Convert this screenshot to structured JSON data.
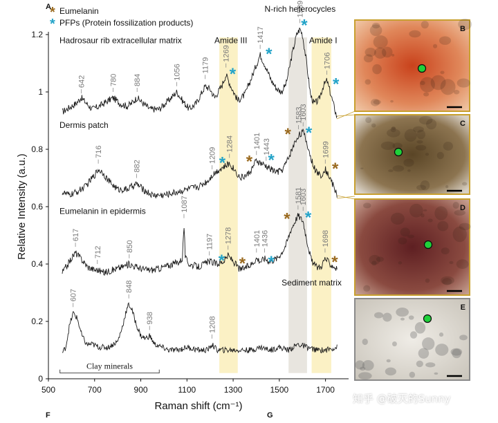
{
  "panel_labels": {
    "a": "A",
    "f": "F",
    "g": "G"
  },
  "legend": [
    {
      "symbol": "*",
      "color": "#9a6a1f",
      "label": "Eumelanin"
    },
    {
      "symbol": "*",
      "color": "#23a3c8",
      "label": "PFPs (Protein fossilization products)"
    }
  ],
  "chart_data": {
    "type": "line",
    "xlabel": "Raman shift (cm⁻¹)",
    "ylabel": "Relative Intensity (a.u.)",
    "xlim": [
      500,
      1800
    ],
    "ylim": [
      0,
      1.2
    ],
    "xticks": [
      500,
      700,
      900,
      1100,
      1300,
      1500,
      1700
    ],
    "yticks": [
      0,
      0.2,
      0.4,
      0.6,
      0.8,
      1.0,
      1.2
    ],
    "ytick_labels": [
      "0",
      "0.2",
      "0.4",
      "0.6",
      "0.8",
      "1",
      "1.2"
    ],
    "grid": false,
    "bands": [
      {
        "name": "Amide III",
        "range": [
          1240,
          1320
        ],
        "color": "#fbefbf"
      },
      {
        "name": "N-rich heterocycles",
        "range": [
          1540,
          1620
        ],
        "color": "#e6e2dc"
      },
      {
        "name": "Amide I",
        "range": [
          1640,
          1725
        ],
        "color": "#fbefbf"
      }
    ],
    "series": [
      {
        "name": "Hadrosaur rib extracellular matrix",
        "label_at": [
          548,
          1.17
        ],
        "noise": 0.012,
        "points": [
          [
            560,
            0.93
          ],
          [
            580,
            0.94
          ],
          [
            600,
            0.95
          ],
          [
            620,
            0.96
          ],
          [
            642,
            0.98
          ],
          [
            665,
            0.96
          ],
          [
            690,
            0.94
          ],
          [
            720,
            0.95
          ],
          [
            760,
            0.97
          ],
          [
            780,
            0.98
          ],
          [
            810,
            0.96
          ],
          [
            840,
            0.95
          ],
          [
            860,
            0.96
          ],
          [
            884,
            0.98
          ],
          [
            910,
            0.96
          ],
          [
            940,
            0.94
          ],
          [
            980,
            0.94
          ],
          [
            1020,
            0.97
          ],
          [
            1056,
            1.0
          ],
          [
            1080,
            0.97
          ],
          [
            1110,
            0.94
          ],
          [
            1140,
            0.96
          ],
          [
            1179,
            1.02
          ],
          [
            1200,
            1.01
          ],
          [
            1220,
            0.98
          ],
          [
            1250,
            1.02
          ],
          [
            1269,
            1.06
          ],
          [
            1290,
            1.02
          ],
          [
            1320,
            0.97
          ],
          [
            1350,
            0.99
          ],
          [
            1380,
            1.05
          ],
          [
            1417,
            1.13
          ],
          [
            1440,
            1.09
          ],
          [
            1465,
            1.04
          ],
          [
            1490,
            1.01
          ],
          [
            1510,
            1.0
          ],
          [
            1530,
            1.03
          ],
          [
            1555,
            1.13
          ],
          [
            1575,
            1.2
          ],
          [
            1589,
            1.22
          ],
          [
            1600,
            1.2
          ],
          [
            1615,
            1.12
          ],
          [
            1635,
            0.99
          ],
          [
            1650,
            0.96
          ],
          [
            1670,
            0.97
          ],
          [
            1690,
            1.02
          ],
          [
            1706,
            1.04
          ],
          [
            1720,
            1.0
          ],
          [
            1740,
            0.94
          ],
          [
            1750,
            0.91
          ]
        ]
      },
      {
        "name": "Dermis patch",
        "label_at": [
          548,
          0.875
        ],
        "noise": 0.012,
        "points": [
          [
            560,
            0.65
          ],
          [
            590,
            0.64
          ],
          [
            620,
            0.65
          ],
          [
            660,
            0.67
          ],
          [
            700,
            0.71
          ],
          [
            716,
            0.73
          ],
          [
            735,
            0.72
          ],
          [
            760,
            0.69
          ],
          [
            800,
            0.66
          ],
          [
            840,
            0.66
          ],
          [
            882,
            0.68
          ],
          [
            910,
            0.66
          ],
          [
            950,
            0.64
          ],
          [
            1000,
            0.64
          ],
          [
            1050,
            0.65
          ],
          [
            1100,
            0.66
          ],
          [
            1150,
            0.67
          ],
          [
            1190,
            0.69
          ],
          [
            1209,
            0.71
          ],
          [
            1240,
            0.73
          ],
          [
            1265,
            0.74
          ],
          [
            1284,
            0.75
          ],
          [
            1305,
            0.73
          ],
          [
            1330,
            0.7
          ],
          [
            1360,
            0.71
          ],
          [
            1380,
            0.73
          ],
          [
            1401,
            0.76
          ],
          [
            1420,
            0.75
          ],
          [
            1443,
            0.74
          ],
          [
            1465,
            0.73
          ],
          [
            1490,
            0.72
          ],
          [
            1515,
            0.73
          ],
          [
            1540,
            0.77
          ],
          [
            1560,
            0.81
          ],
          [
            1583,
            0.85
          ],
          [
            1603,
            0.86
          ],
          [
            1620,
            0.82
          ],
          [
            1640,
            0.76
          ],
          [
            1660,
            0.72
          ],
          [
            1680,
            0.71
          ],
          [
            1699,
            0.73
          ],
          [
            1720,
            0.7
          ],
          [
            1740,
            0.66
          ],
          [
            1750,
            0.64
          ]
        ]
      },
      {
        "name": "Eumelanin in epidermis",
        "label_at": [
          548,
          0.575
        ],
        "noise": 0.012,
        "points": [
          [
            560,
            0.37
          ],
          [
            585,
            0.4
          ],
          [
            600,
            0.42
          ],
          [
            617,
            0.44
          ],
          [
            640,
            0.42
          ],
          [
            670,
            0.39
          ],
          [
            700,
            0.38
          ],
          [
            712,
            0.38
          ],
          [
            740,
            0.37
          ],
          [
            780,
            0.38
          ],
          [
            820,
            0.39
          ],
          [
            850,
            0.4
          ],
          [
            880,
            0.39
          ],
          [
            920,
            0.38
          ],
          [
            960,
            0.38
          ],
          [
            1000,
            0.39
          ],
          [
            1040,
            0.4
          ],
          [
            1070,
            0.41
          ],
          [
            1080,
            0.42
          ],
          [
            1087,
            0.54
          ],
          [
            1093,
            0.42
          ],
          [
            1110,
            0.4
          ],
          [
            1150,
            0.39
          ],
          [
            1197,
            0.41
          ],
          [
            1230,
            0.4
          ],
          [
            1260,
            0.41
          ],
          [
            1278,
            0.43
          ],
          [
            1300,
            0.41
          ],
          [
            1330,
            0.38
          ],
          [
            1360,
            0.39
          ],
          [
            1380,
            0.4
          ],
          [
            1401,
            0.42
          ],
          [
            1420,
            0.41
          ],
          [
            1436,
            0.42
          ],
          [
            1460,
            0.41
          ],
          [
            1490,
            0.42
          ],
          [
            1510,
            0.44
          ],
          [
            1530,
            0.47
          ],
          [
            1550,
            0.52
          ],
          [
            1568,
            0.55
          ],
          [
            1581,
            0.57
          ],
          [
            1603,
            0.55
          ],
          [
            1620,
            0.48
          ],
          [
            1640,
            0.41
          ],
          [
            1660,
            0.39
          ],
          [
            1680,
            0.39
          ],
          [
            1698,
            0.42
          ],
          [
            1720,
            0.4
          ],
          [
            1740,
            0.39
          ],
          [
            1750,
            0.38
          ]
        ]
      },
      {
        "name": "Sediment matrix",
        "label_at": [
          1510,
          0.325
        ],
        "noise": 0.01,
        "points": [
          [
            560,
            0.09
          ],
          [
            575,
            0.11
          ],
          [
            590,
            0.18
          ],
          [
            607,
            0.23
          ],
          [
            625,
            0.21
          ],
          [
            645,
            0.15
          ],
          [
            665,
            0.12
          ],
          [
            690,
            0.12
          ],
          [
            720,
            0.11
          ],
          [
            760,
            0.11
          ],
          [
            800,
            0.13
          ],
          [
            820,
            0.18
          ],
          [
            835,
            0.23
          ],
          [
            848,
            0.26
          ],
          [
            862,
            0.24
          ],
          [
            880,
            0.19
          ],
          [
            900,
            0.15
          ],
          [
            920,
            0.14
          ],
          [
            938,
            0.15
          ],
          [
            960,
            0.12
          ],
          [
            990,
            0.11
          ],
          [
            1020,
            0.1
          ],
          [
            1060,
            0.1
          ],
          [
            1100,
            0.11
          ],
          [
            1150,
            0.1
          ],
          [
            1190,
            0.1
          ],
          [
            1208,
            0.12
          ],
          [
            1230,
            0.1
          ],
          [
            1280,
            0.1
          ],
          [
            1330,
            0.1
          ],
          [
            1380,
            0.1
          ],
          [
            1420,
            0.11
          ],
          [
            1460,
            0.1
          ],
          [
            1500,
            0.11
          ],
          [
            1540,
            0.1
          ],
          [
            1580,
            0.12
          ],
          [
            1620,
            0.11
          ],
          [
            1660,
            0.1
          ],
          [
            1700,
            0.1
          ],
          [
            1750,
            0.11
          ]
        ]
      }
    ],
    "peak_labels": [
      {
        "x": 642,
        "y": 0.995,
        "text": "642"
      },
      {
        "x": 780,
        "y": 1.0,
        "text": "780"
      },
      {
        "x": 884,
        "y": 1.0,
        "text": "884"
      },
      {
        "x": 1056,
        "y": 1.02,
        "text": "1056"
      },
      {
        "x": 1179,
        "y": 1.045,
        "text": "1179"
      },
      {
        "x": 1269,
        "y": 1.085,
        "text": "1269"
      },
      {
        "x": 1417,
        "y": 1.15,
        "text": "1417"
      },
      {
        "x": 1589,
        "y": 1.24,
        "text": "1589"
      },
      {
        "x": 1706,
        "y": 1.06,
        "text": "1706"
      },
      {
        "x": 716,
        "y": 0.75,
        "text": "716"
      },
      {
        "x": 882,
        "y": 0.7,
        "text": "882"
      },
      {
        "x": 1209,
        "y": 0.73,
        "text": "1209"
      },
      {
        "x": 1284,
        "y": 0.77,
        "text": "1284"
      },
      {
        "x": 1401,
        "y": 0.78,
        "text": "1401"
      },
      {
        "x": 1443,
        "y": 0.76,
        "text": "1443"
      },
      {
        "x": 1583,
        "y": 0.87,
        "text": "1583"
      },
      {
        "x": 1603,
        "y": 0.88,
        "text": "1603"
      },
      {
        "x": 1699,
        "y": 0.75,
        "text": "1699"
      },
      {
        "x": 617,
        "y": 0.46,
        "text": "617"
      },
      {
        "x": 712,
        "y": 0.4,
        "text": "712"
      },
      {
        "x": 850,
        "y": 0.42,
        "text": "850"
      },
      {
        "x": 1087,
        "y": 0.56,
        "text": "1087"
      },
      {
        "x": 1197,
        "y": 0.43,
        "text": "1197"
      },
      {
        "x": 1278,
        "y": 0.45,
        "text": "1278"
      },
      {
        "x": 1401,
        "y": 0.44,
        "text": "1401"
      },
      {
        "x": 1436,
        "y": 0.44,
        "text": "1436"
      },
      {
        "x": 1581,
        "y": 0.59,
        "text": "1581"
      },
      {
        "x": 1603,
        "y": 0.585,
        "text": "1603"
      },
      {
        "x": 1698,
        "y": 0.44,
        "text": "1698"
      },
      {
        "x": 607,
        "y": 0.25,
        "text": "607"
      },
      {
        "x": 848,
        "y": 0.28,
        "text": "848"
      },
      {
        "x": 938,
        "y": 0.17,
        "text": "938"
      },
      {
        "x": 1208,
        "y": 0.14,
        "text": "1208"
      }
    ],
    "markers": [
      {
        "x": 1298,
        "y": 1.065,
        "kind": "PFP"
      },
      {
        "x": 1455,
        "y": 1.135,
        "kind": "PFP"
      },
      {
        "x": 1608,
        "y": 1.235,
        "kind": "PFP"
      },
      {
        "x": 1745,
        "y": 1.03,
        "kind": "PFP"
      },
      {
        "x": 1253,
        "y": 0.755,
        "kind": "PFP"
      },
      {
        "x": 1370,
        "y": 0.76,
        "kind": "Eumelanin"
      },
      {
        "x": 1465,
        "y": 0.765,
        "kind": "PFP"
      },
      {
        "x": 1537,
        "y": 0.855,
        "kind": "Eumelanin"
      },
      {
        "x": 1628,
        "y": 0.86,
        "kind": "PFP"
      },
      {
        "x": 1742,
        "y": 0.735,
        "kind": "Eumelanin"
      },
      {
        "x": 1250,
        "y": 0.415,
        "kind": "PFP"
      },
      {
        "x": 1340,
        "y": 0.405,
        "kind": "Eumelanin"
      },
      {
        "x": 1465,
        "y": 0.41,
        "kind": "PFP"
      },
      {
        "x": 1533,
        "y": 0.56,
        "kind": "Eumelanin"
      },
      {
        "x": 1625,
        "y": 0.565,
        "kind": "PFP"
      },
      {
        "x": 1740,
        "y": 0.41,
        "kind": "Eumelanin"
      }
    ],
    "annotations": [
      {
        "text": "Clay minerals",
        "bracket": [
          550,
          980
        ],
        "y": 0.02
      }
    ]
  },
  "insets": [
    {
      "letter": "B",
      "bg": "#d8713e",
      "border": "#c8a02f"
    },
    {
      "letter": "C",
      "bg": "#9c8b6b",
      "border": "#c8a02f"
    },
    {
      "letter": "D",
      "bg": "#7a2f2a",
      "border": "#c8a02f"
    },
    {
      "letter": "E",
      "bg": "#dcd8d0",
      "border": "#8a8a8a"
    }
  ],
  "watermark": "知乎 @破灭的Sunny"
}
